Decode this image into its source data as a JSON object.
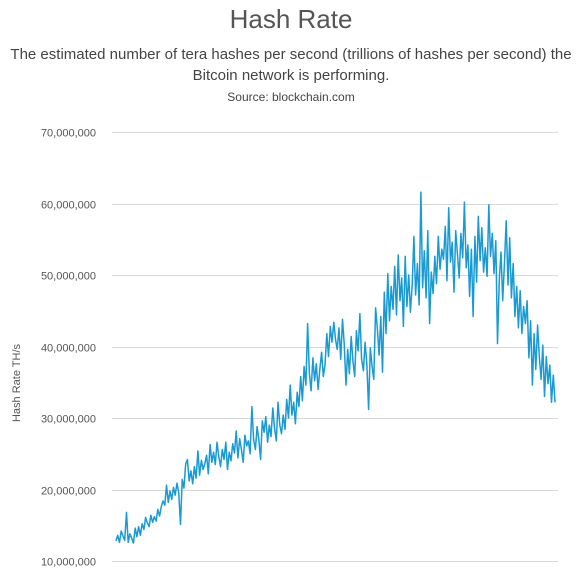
{
  "chart_data": {
    "type": "line",
    "title": "Hash Rate",
    "subtitle": "The estimated number of tera hashes per second (trillions of hashes per second) the Bitcoin network is performing.",
    "source": "Source: blockchain.com",
    "xlabel": "",
    "ylabel": "Hash Rate TH/s",
    "ylim": [
      10000000,
      70000000
    ],
    "y_ticks": [
      10000000,
      20000000,
      30000000,
      40000000,
      50000000,
      60000000,
      70000000
    ],
    "y_tick_labels": [
      "10,000,000",
      "20,000,000",
      "30,000,000",
      "40,000,000",
      "50,000,000",
      "60,000,000",
      "70,000,000"
    ],
    "grid": true,
    "legend": "none",
    "line_color": "#1a9ad3",
    "series": [
      {
        "values": [
          12.8,
          13.6,
          12.6,
          14.2,
          13.5,
          12.9,
          16.8,
          12.6,
          13.8,
          13.2,
          12.5,
          14.6,
          13.4,
          14.8,
          13.6,
          15.2,
          14.4,
          16.1,
          15.3,
          14.8,
          16.4,
          15.4,
          16.2,
          15.6,
          17.2,
          16.3,
          17.6,
          18.4,
          17.8,
          20.6,
          18.2,
          19.8,
          18.6,
          20.3,
          19.2,
          20.9,
          19.6,
          15.1,
          21.4,
          20.2,
          23.6,
          24.2,
          21.2,
          22.6,
          20.8,
          23.2,
          21.6,
          25.4,
          22.0,
          24.1,
          22.8,
          23.6,
          24.8,
          22.2,
          26.3,
          23.8,
          25.2,
          23.5,
          26.6,
          24.6,
          23.2,
          25.6,
          24.2,
          26.6,
          22.8,
          25.2,
          24.0,
          26.4,
          25.1,
          28.2,
          24.4,
          27.1,
          25.6,
          23.8,
          27.6,
          26.1,
          26.8,
          25.0,
          31.6,
          27.0,
          25.6,
          28.8,
          27.0,
          24.2,
          29.6,
          28.0,
          30.2,
          26.6,
          29.0,
          27.4,
          31.4,
          28.6,
          26.8,
          32.2,
          29.0,
          27.8,
          30.4,
          28.4,
          32.6,
          30.0,
          34.6,
          30.4,
          32.2,
          29.2,
          33.6,
          31.6,
          35.8,
          32.4,
          37.2,
          34.6,
          43.2,
          36.2,
          33.8,
          38.4,
          35.2,
          37.6,
          34.0,
          36.8,
          39.2,
          35.8,
          37.4,
          41.8,
          38.6,
          42.8,
          40.6,
          43.4,
          41.0,
          39.6,
          42.6,
          38.2,
          43.8,
          40.4,
          34.6,
          39.6,
          36.2,
          41.4,
          38.0,
          35.8,
          42.2,
          39.4,
          44.6,
          38.2,
          36.6,
          40.6,
          37.4,
          31.2,
          39.8,
          37.2,
          35.4,
          45.4,
          42.6,
          38.8,
          44.2,
          36.4,
          47.6,
          41.8,
          50.2,
          43.6,
          48.4,
          45.2,
          51.2,
          44.4,
          52.8,
          46.4,
          49.6,
          42.8,
          52.6,
          45.6,
          50.0,
          44.8,
          48.6,
          55.4,
          47.2,
          51.6,
          45.8,
          61.6,
          48.2,
          53.4,
          46.8,
          56.2,
          43.2,
          50.4,
          47.4,
          52.6,
          48.8,
          55.4,
          50.8,
          53.6,
          52.2,
          56.8,
          49.2,
          59.4,
          51.8,
          54.6,
          47.6,
          56.2,
          53.0,
          49.6,
          55.8,
          52.4,
          60.2,
          51.0,
          54.2,
          47.0,
          53.6,
          44.2,
          55.4,
          49.0,
          58.2,
          52.0,
          56.6,
          50.4,
          53.8,
          49.8,
          59.8,
          52.6,
          55.8,
          50.2,
          54.8,
          40.4,
          49.4,
          53.2,
          46.4,
          51.8,
          57.6,
          48.6,
          55.2,
          46.8,
          51.6,
          44.2,
          48.4,
          42.6,
          47.8,
          41.8,
          45.6,
          43.2,
          46.4,
          38.4,
          43.6,
          34.6,
          41.8,
          36.8,
          43.0,
          38.6,
          35.4,
          40.2,
          33.0,
          38.6,
          34.8,
          37.4,
          32.2,
          36.0,
          32.2
        ]
      }
    ]
  }
}
